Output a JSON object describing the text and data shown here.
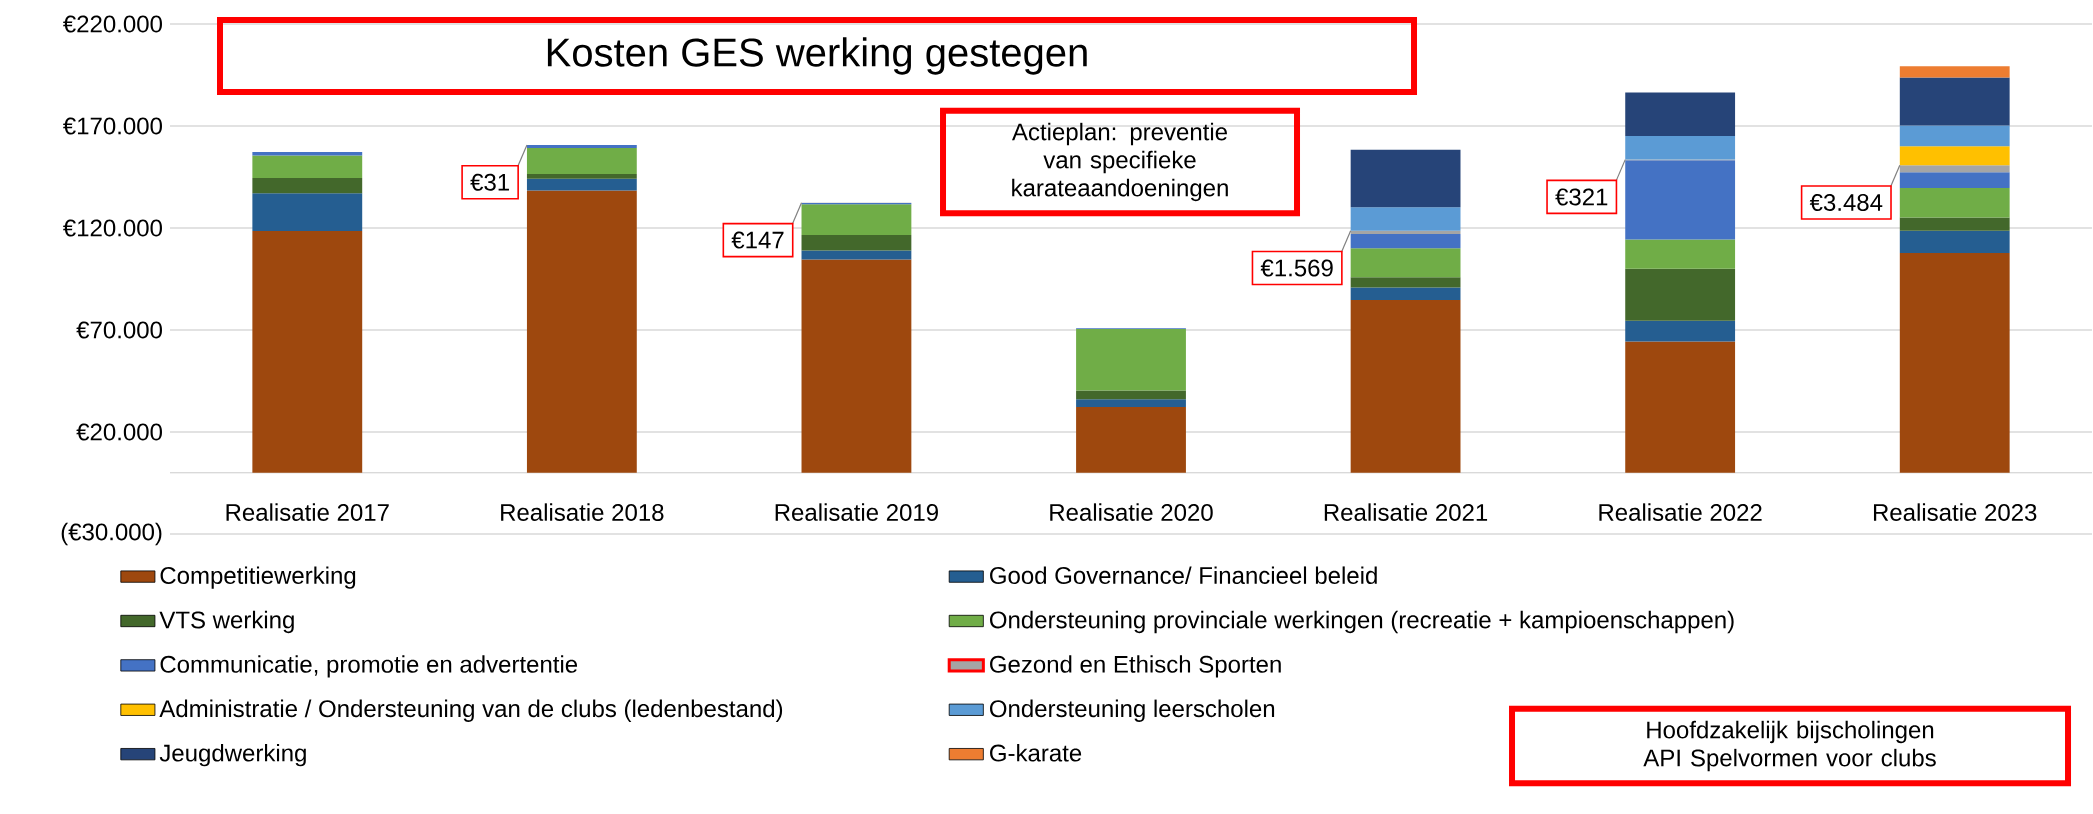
{
  "chart_data": {
    "type": "bar",
    "title": "Kosten GES werking gestegen",
    "categories": [
      "Realisatie 2017",
      "Realisatie 2018",
      "Realisatie 2019",
      "Realisatie 2020",
      "Realisatie 2021",
      "Realisatie 2022",
      "Realisatie 2023"
    ],
    "stacked": true,
    "series": [
      {
        "name": "Competitiewerking",
        "color": "#9e480e",
        "values": [
          118500,
          138400,
          104600,
          32300,
          84700,
          64400,
          107700
        ]
      },
      {
        "name": "Good Governance/ Financieel beleid",
        "color": "#255e91",
        "values": [
          18500,
          5700,
          4400,
          3700,
          6100,
          10100,
          10900
        ]
      },
      {
        "name": "VTS werking",
        "color": "#43682b",
        "values": [
          7500,
          2400,
          7600,
          4400,
          5000,
          25500,
          6600
        ]
      },
      {
        "name": "Ondersteuning provinciale werkingen (recreatie + kampioenschappen)",
        "color": "#70ad47",
        "values": [
          11000,
          12700,
          15100,
          30100,
          14300,
          14400,
          14400
        ]
      },
      {
        "name": "Communicatie, promotie en advertentie",
        "color": "#4472c4",
        "values": [
          1700,
          1500,
          500,
          400,
          7000,
          38800,
          7700
        ]
      },
      {
        "name": "Gezond en Ethisch Sporten",
        "color": "#a5a5a5",
        "values": [
          null,
          31,
          147,
          null,
          1569,
          321,
          3484
        ],
        "value_labels": [
          null,
          "€31",
          "€147",
          null,
          "€1.569",
          "€321",
          "€3.484"
        ]
      },
      {
        "name": "Administratie / Ondersteuning van de clubs (ledenbestand)",
        "color": "#ffc000",
        "values": [
          null,
          null,
          null,
          null,
          null,
          null,
          9300
        ]
      },
      {
        "name": "Ondersteuning leerscholen",
        "color": "#5b9bd5",
        "values": [
          null,
          null,
          null,
          null,
          11500,
          11600,
          10200
        ]
      },
      {
        "name": "Jeugdwerking",
        "color": "#264478",
        "values": [
          null,
          null,
          null,
          null,
          28200,
          21300,
          23500
        ]
      },
      {
        "name": "G-karate",
        "color": "#ed7d31",
        "values": [
          null,
          null,
          null,
          null,
          null,
          null,
          5500
        ]
      }
    ],
    "ylim": [
      -30000,
      220000
    ],
    "yticks": [
      {
        "value": -30000,
        "label": "(€30.000)"
      },
      {
        "value": 20000,
        "label": "€20.000"
      },
      {
        "value": 70000,
        "label": "€70.000"
      },
      {
        "value": 120000,
        "label": "€120.000"
      },
      {
        "value": 170000,
        "label": "€170.000"
      },
      {
        "value": 220000,
        "label": "€220.000"
      }
    ],
    "grid": "y",
    "legend": "bottom",
    "annotations": [
      "Actieplan: preventie van specifieke karateaandoeningen",
      "Hoofdzakelijk bijscholingen API Spelvormen voor clubs"
    ]
  }
}
